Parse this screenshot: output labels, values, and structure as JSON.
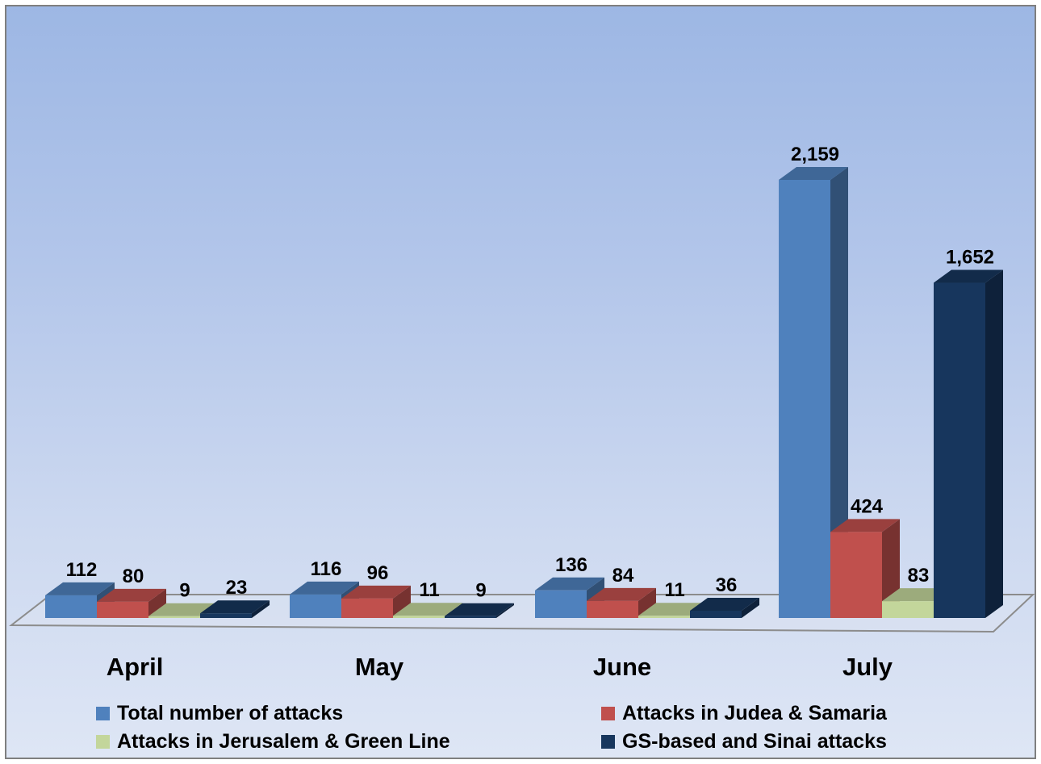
{
  "chart_data": {
    "type": "bar",
    "categories": [
      "April",
      "May",
      "June",
      "July"
    ],
    "series": [
      {
        "name": "Total number of attacks",
        "values": [
          112,
          116,
          136,
          2159
        ],
        "labels": [
          "112",
          "116",
          "136",
          "2,159"
        ],
        "color": "#4f81bd"
      },
      {
        "name": "Attacks in Judea & Samaria",
        "values": [
          80,
          96,
          84,
          424
        ],
        "labels": [
          "80",
          "96",
          "84",
          "424"
        ],
        "color": "#c0504d"
      },
      {
        "name": "Attacks in Jerusalem & Green Line",
        "values": [
          9,
          11,
          11,
          83
        ],
        "labels": [
          "9",
          "11",
          "11",
          "83"
        ],
        "color": "#c3d69b"
      },
      {
        "name": "GS-based and Sinai attacks",
        "values": [
          23,
          9,
          36,
          1652
        ],
        "labels": [
          "23",
          "9",
          "36",
          "1,652"
        ],
        "color": "#17365d"
      }
    ],
    "ylim": [
      0,
      2159
    ],
    "grid": false,
    "legend_position": "bottom",
    "style": "3d-clustered-column"
  }
}
